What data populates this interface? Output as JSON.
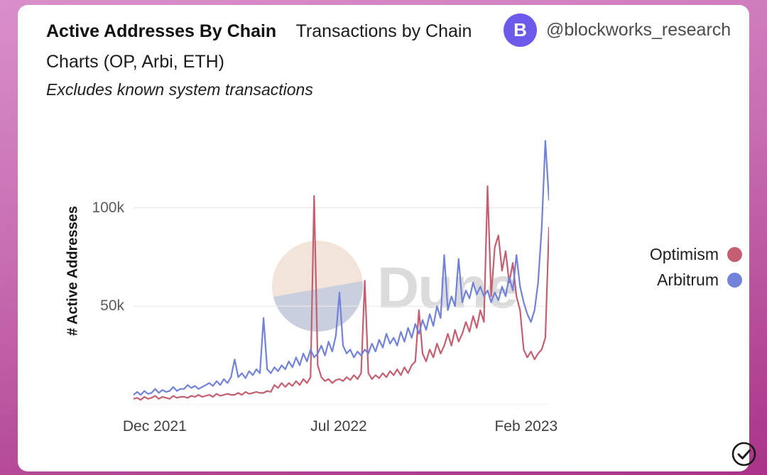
{
  "header": {
    "title_bold": "Active Addresses By Chain",
    "title_rest": "Transactions by Chain Charts (OP, Arbi, ETH)",
    "subtitle": "Excludes known system transactions",
    "account": {
      "handle": "@blockworks_research",
      "avatar_letter": "B",
      "avatar_color": "#6c5beb"
    }
  },
  "watermark": {
    "text": "Dune",
    "circle_top_color": "#f3e4da",
    "circle_bottom_color": "#c9cfde"
  },
  "chart_data": {
    "type": "line",
    "title": "Active Addresses By Chain",
    "ylabel": "# Active Addresses",
    "xlabel": "",
    "unit": "thousands of active addresses (values in k)",
    "x_domain": [
      "2021-11-06",
      "2023-03-28"
    ],
    "x_ticks": [
      {
        "label": "Dec 2021",
        "pos": 0.051
      },
      {
        "label": "Jul 2022",
        "pos": 0.494
      },
      {
        "label": "Feb 2023",
        "pos": 0.945
      }
    ],
    "y_ticks": [
      {
        "label": "50k",
        "value": 50
      },
      {
        "label": "100k",
        "value": 100
      }
    ],
    "ylim": [
      0,
      137
    ],
    "grid": true,
    "legend_position": "right",
    "gridline_color": "#e9e9e9",
    "series": [
      {
        "name": "Optimism",
        "color": "#c45f71",
        "values": [
          3,
          3.5,
          2.5,
          4,
          3,
          3.5,
          4.5,
          3,
          4,
          3.5,
          3,
          4.5,
          3.5,
          4,
          4,
          3.5,
          4.5,
          4,
          5,
          4,
          4.5,
          5,
          4,
          5.5,
          4.5,
          5,
          5.5,
          5,
          5,
          6,
          5,
          6.5,
          5.5,
          6,
          6.5,
          6,
          6,
          7,
          6.5,
          10,
          8.5,
          11,
          9,
          11,
          9.5,
          12,
          10,
          13,
          11,
          14,
          106,
          20,
          14,
          12,
          13,
          11,
          12.5,
          13,
          12,
          14,
          12.5,
          15,
          13,
          16,
          63,
          16,
          13,
          15,
          13.5,
          16,
          14,
          17,
          15,
          18,
          15,
          19,
          16,
          20,
          22,
          48,
          26,
          22,
          28,
          24,
          31,
          26,
          30,
          36,
          30,
          38,
          32,
          36,
          42,
          37,
          45,
          39,
          48,
          42,
          111,
          55,
          80,
          86,
          68,
          78,
          62,
          72,
          55,
          48,
          28,
          24,
          27,
          23,
          26,
          28,
          34,
          90
        ]
      },
      {
        "name": "Arbitrum",
        "color": "#7182d8",
        "values": [
          5,
          6.5,
          5,
          7,
          5.5,
          6,
          8,
          6,
          7.5,
          6.5,
          7,
          9,
          7,
          8,
          8,
          10,
          8.5,
          9.5,
          8,
          9,
          10,
          11,
          9.5,
          12,
          10,
          13,
          11,
          14,
          23,
          14,
          16,
          13.5,
          17,
          15,
          18,
          16,
          44,
          18,
          16,
          19,
          17,
          20,
          18,
          22,
          19,
          24,
          20,
          26,
          22,
          28,
          24,
          26,
          30,
          25,
          32,
          27,
          35,
          57,
          30,
          26,
          28,
          24,
          27,
          25,
          28,
          26,
          31,
          27,
          33,
          29,
          36,
          31,
          34,
          30,
          37,
          32,
          39,
          34,
          41,
          36,
          43,
          38,
          46,
          40,
          50,
          44,
          76,
          48,
          55,
          50,
          74,
          52,
          58,
          54,
          62,
          56,
          60,
          55,
          58,
          52,
          57,
          53,
          60,
          55,
          65,
          58,
          76,
          60,
          52,
          46,
          42,
          48,
          62,
          90,
          134,
          104
        ]
      }
    ]
  }
}
